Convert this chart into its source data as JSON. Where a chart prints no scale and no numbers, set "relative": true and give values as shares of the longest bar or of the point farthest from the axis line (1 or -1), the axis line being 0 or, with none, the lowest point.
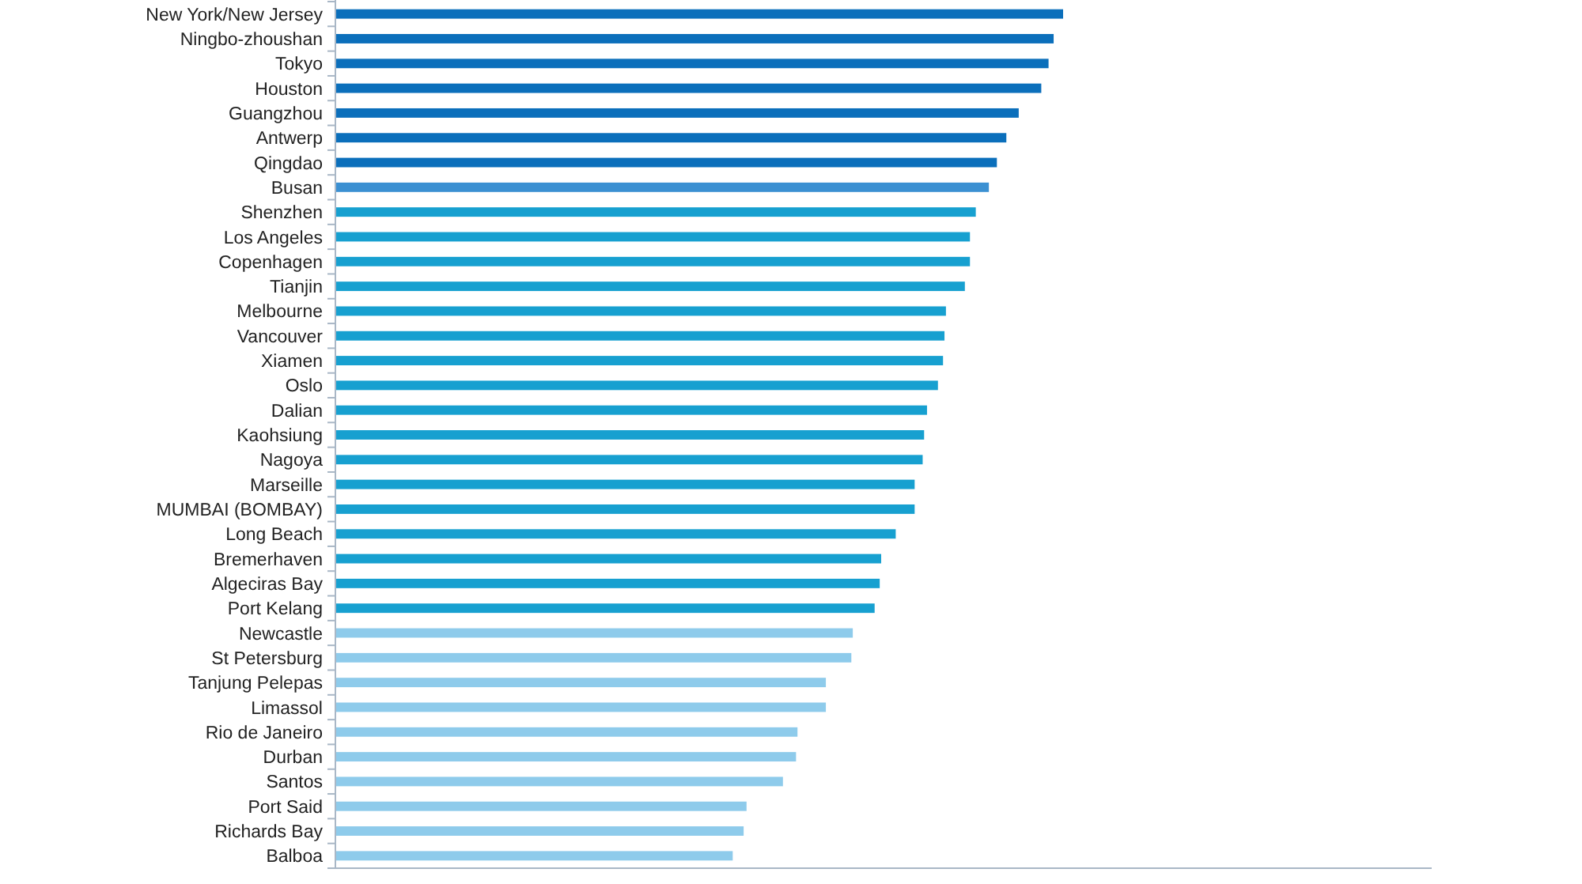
{
  "chart_data": {
    "type": "bar",
    "orientation": "horizontal",
    "relative": true,
    "categories": [
      "New York/New Jersey",
      "Ningbo-zhoushan",
      "Tokyo",
      "Houston",
      "Guangzhou",
      "Antwerp",
      "Qingdao",
      "Busan",
      "Shenzhen",
      "Los Angeles",
      "Copenhagen",
      "Tianjin",
      "Melbourne",
      "Vancouver",
      "Xiamen",
      "Oslo",
      "Dalian",
      "Kaohsiung",
      "Nagoya",
      "Marseille",
      "MUMBAI (BOMBAY)",
      "Long Beach",
      "Bremerhaven",
      "Algeciras Bay",
      "Port Kelang",
      "Newcastle",
      "St Petersburg",
      "Tanjung Pelepas",
      "Limassol",
      "Rio de Janeiro",
      "Durban",
      "Santos",
      "Port Said",
      "Richards Bay",
      "Balboa"
    ],
    "values": [
      1,
      0.987,
      0.98,
      0.97,
      0.939,
      0.922,
      0.909,
      0.898,
      0.88,
      0.872,
      0.872,
      0.865,
      0.839,
      0.837,
      0.835,
      0.828,
      0.813,
      0.809,
      0.807,
      0.796,
      0.796,
      0.77,
      0.75,
      0.748,
      0.741,
      0.711,
      0.709,
      0.674,
      0.674,
      0.635,
      0.633,
      0.615,
      0.565,
      0.561,
      0.546
    ],
    "colors": [
      "#0b6fbb",
      "#0b6fbb",
      "#0b6fbb",
      "#0b6fbb",
      "#0b6fbb",
      "#0b6fbb",
      "#0b6fbb",
      "#3b90d2",
      "#17a0d0",
      "#17a0d0",
      "#17a0d0",
      "#17a0d0",
      "#17a0d0",
      "#17a0d0",
      "#17a0d0",
      "#17a0d0",
      "#17a0d0",
      "#17a0d0",
      "#17a0d0",
      "#17a0d0",
      "#17a0d0",
      "#17a0d0",
      "#17a0d0",
      "#17a0d0",
      "#17a0d0",
      "#8ecbeb",
      "#8ecbeb",
      "#8ecbeb",
      "#8ecbeb",
      "#8ecbeb",
      "#8ecbeb",
      "#8ecbeb",
      "#8ecbeb",
      "#8ecbeb",
      "#8ecbeb"
    ]
  }
}
